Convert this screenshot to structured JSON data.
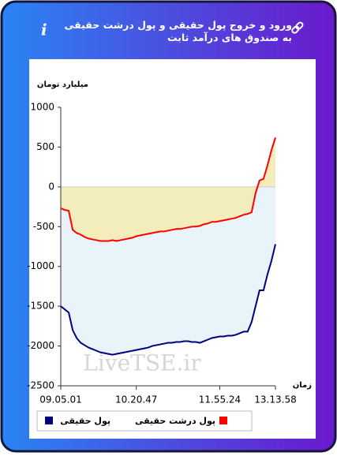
{
  "chart_data": {
    "type": "line",
    "title": "ورود و خروج پول حقیقی و پول درشت حقیقی به صندوق های درآمد ثابت",
    "y_label": "میلیارد تومان",
    "x_label": "زمان",
    "watermark": "LiveTSE.ir",
    "categories": [
      "09.05.01",
      null,
      null,
      null,
      null,
      null,
      null,
      null,
      null,
      null,
      null,
      null,
      null,
      null,
      null,
      null,
      null,
      null,
      null,
      "10.20.47",
      null,
      null,
      null,
      null,
      null,
      null,
      null,
      null,
      null,
      null,
      null,
      null,
      null,
      null,
      null,
      null,
      null,
      null,
      null,
      null,
      "11.55.24",
      null,
      null,
      null,
      null,
      null,
      null,
      null,
      null,
      null,
      null,
      null,
      null,
      null,
      "13.13.58"
    ],
    "series": [
      {
        "name": "پول حقیقی",
        "color": "#000080",
        "fill": "#e8f3fa",
        "values": [
          -1500,
          -1540,
          -1580,
          -1800,
          -1900,
          -1960,
          -1990,
          -2020,
          -2040,
          -2060,
          -2080,
          -2090,
          -2100,
          -2110,
          -2100,
          -2090,
          -2080,
          -2070,
          -2060,
          -2050,
          -2040,
          -2030,
          -2020,
          -2000,
          -1990,
          -1980,
          -1970,
          -1960,
          -1960,
          -1950,
          -1950,
          -1940,
          -1940,
          -1950,
          -1950,
          -1960,
          -1940,
          -1920,
          -1900,
          -1890,
          -1880,
          -1880,
          -1870,
          -1870,
          -1860,
          -1840,
          -1820,
          -1820,
          -1700,
          -1500,
          -1300,
          -1300,
          -1100,
          -930,
          -720
        ]
      },
      {
        "name": "پول درشت حقیقی",
        "color": "#ff0000",
        "fill": "#f3edbb",
        "values": [
          -270,
          -290,
          -300,
          -540,
          -580,
          -600,
          -630,
          -650,
          -660,
          -670,
          -680,
          -680,
          -680,
          -670,
          -680,
          -670,
          -660,
          -650,
          -640,
          -620,
          -610,
          -600,
          -590,
          -580,
          -570,
          -560,
          -560,
          -550,
          -540,
          -530,
          -530,
          -520,
          -510,
          -500,
          -500,
          -490,
          -470,
          -460,
          -440,
          -440,
          -430,
          -420,
          -410,
          -400,
          -390,
          -370,
          -350,
          -340,
          -320,
          -80,
          80,
          100,
          270,
          460,
          620
        ]
      }
    ],
    "ylim": [
      -2500,
      1000
    ],
    "yticks": [
      1000,
      500,
      0,
      -500,
      -1000,
      -1500,
      -2000,
      -2500
    ],
    "grid": false
  }
}
